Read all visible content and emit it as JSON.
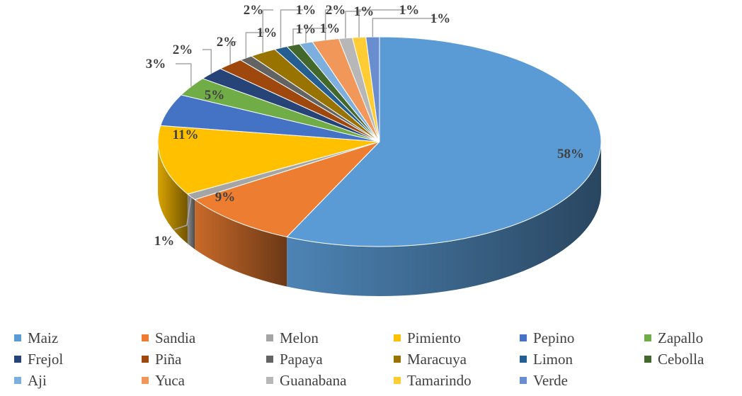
{
  "chart_data": {
    "type": "pie",
    "title": "",
    "categories": [
      "Maiz",
      "Sandia",
      "Melon",
      "Pimiento",
      "Pepino",
      "Zapallo",
      "Frejol",
      "Piña",
      "Papaya",
      "Maracuya",
      "Limon",
      "Cebolla",
      "Aji",
      "Yuca",
      "Guanabana",
      "Tamarindo",
      "Verde"
    ],
    "values": [
      58,
      9,
      1,
      11,
      5,
      3,
      2,
      2,
      1,
      2,
      1,
      1,
      1,
      2,
      1,
      1,
      1
    ],
    "data_labels": [
      "58%",
      "9%",
      "1%",
      "11%",
      "5%",
      "3%",
      "2%",
      "2%",
      "1%",
      "2%",
      "1%",
      "1%",
      "1%",
      "2%",
      "1%",
      "1%",
      "1%"
    ],
    "colors": [
      "#5b9bd5",
      "#ed7d31",
      "#a5a5a5",
      "#ffc000",
      "#4472c4",
      "#70ad47",
      "#264478",
      "#9e480e",
      "#636363",
      "#997300",
      "#255e91",
      "#43682b",
      "#7cafdd",
      "#f1975a",
      "#b7b7b7",
      "#ffcd33",
      "#698ed0"
    ],
    "legend_position": "bottom",
    "style": "3d-pie"
  }
}
